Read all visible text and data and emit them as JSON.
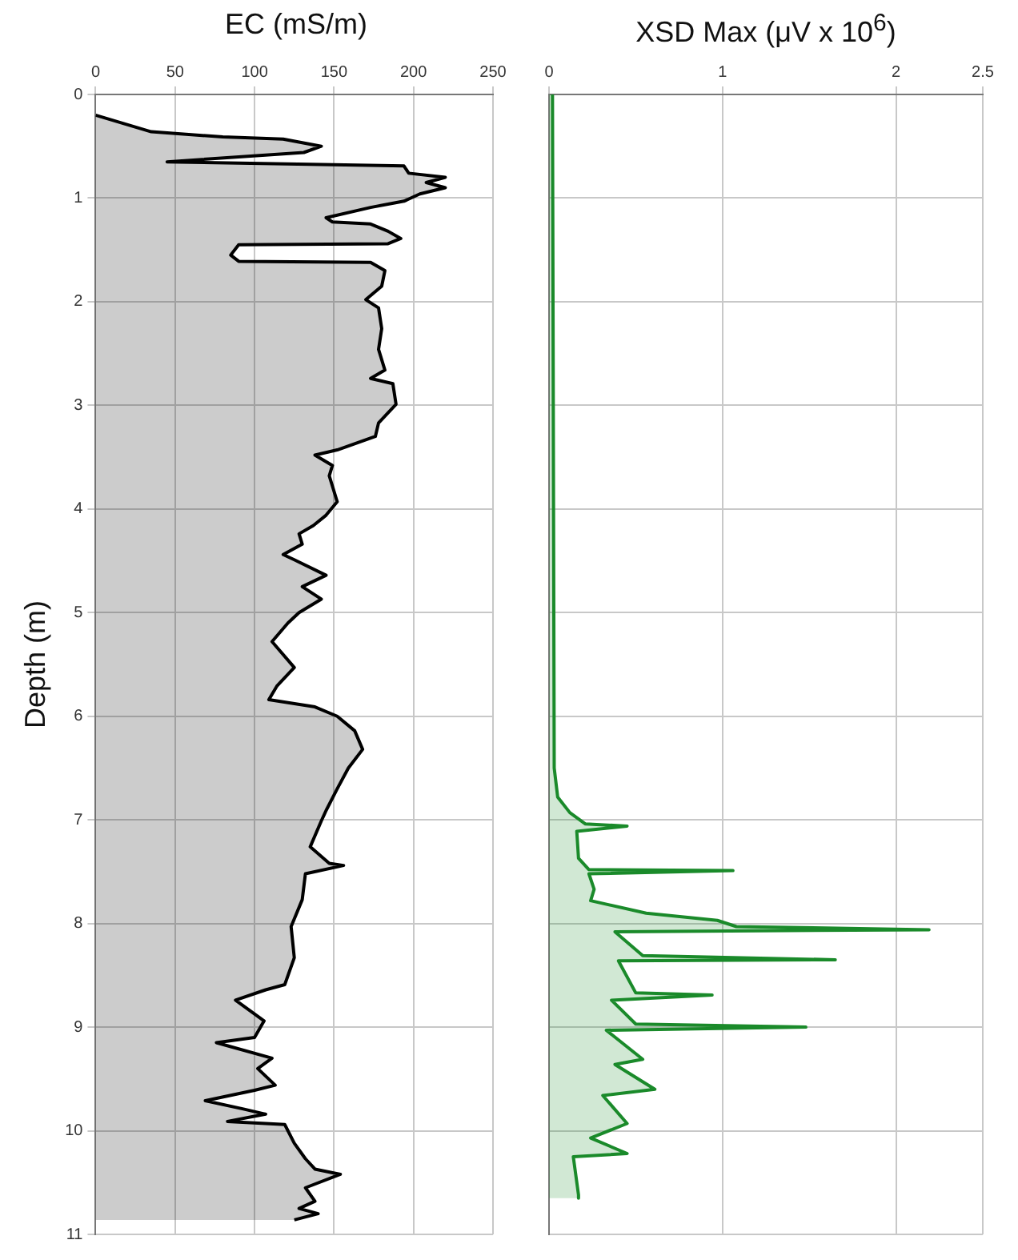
{
  "chart_data": [
    {
      "type": "area",
      "orientation": "horizontal",
      "title": "EC (mS/m)",
      "ylabel": "Depth (m)",
      "xlim": [
        0,
        250
      ],
      "xticks": [
        0,
        50,
        100,
        150,
        200,
        250
      ],
      "ylim": [
        11,
        0
      ],
      "yticks": [
        0,
        1,
        2,
        3,
        4,
        5,
        6,
        7,
        8,
        9,
        10,
        11
      ],
      "grid": true,
      "series": [
        {
          "color": "#000000",
          "x": [
            0.2,
            0.36,
            0.41,
            0.43,
            0.5,
            0.56,
            0.65,
            0.69,
            0.76,
            0.8,
            0.85,
            0.9,
            0.96,
            1.03,
            1.09,
            1.19,
            1.23,
            1.25,
            1.32,
            1.39,
            1.44,
            1.45,
            1.55,
            1.61,
            1.62,
            1.7,
            1.85,
            1.98,
            2.06,
            2.26,
            2.46,
            2.66,
            2.74,
            2.79,
            2.99,
            3.17,
            3.3,
            3.43,
            3.48,
            3.58,
            3.68,
            3.93,
            4.06,
            4.16,
            4.24,
            4.34,
            4.44,
            4.49,
            4.64,
            4.75,
            4.87,
            5.0,
            5.1,
            5.28,
            5.53,
            5.71,
            5.84,
            5.91,
            6.0,
            6.14,
            6.32,
            6.5,
            6.7,
            6.91,
            7.01,
            7.26,
            7.42,
            7.44,
            7.52,
            7.77,
            8.03,
            8.33,
            8.59,
            8.64,
            8.74,
            8.94,
            9.1,
            9.15,
            9.3,
            9.4,
            9.56,
            9.61,
            9.71,
            9.79,
            9.84,
            9.91,
            9.94,
            10.12,
            10.27,
            10.37,
            10.42,
            10.55,
            10.68,
            10.75,
            10.8,
            10.86
          ],
          "values": [
            0,
            35,
            80,
            118,
            142,
            131,
            45,
            194,
            197,
            220,
            208,
            220,
            204,
            194,
            173,
            145,
            149,
            173,
            184,
            192,
            184,
            90,
            85,
            90,
            173,
            182,
            180,
            170,
            178,
            180,
            178,
            182,
            173,
            187,
            189,
            178,
            176,
            152,
            138,
            149,
            147,
            152,
            145,
            137,
            128,
            130,
            118,
            125,
            145,
            130,
            142,
            128,
            121,
            111,
            125,
            114,
            109,
            138,
            152,
            163,
            168,
            159,
            152,
            145,
            142,
            135,
            147,
            156,
            132,
            130,
            123,
            125,
            119,
            107,
            88,
            106,
            100,
            76,
            111,
            102,
            113,
            100,
            69,
            93,
            107,
            83,
            119,
            125,
            132,
            138,
            154,
            132,
            138,
            128,
            140,
            125
          ]
        }
      ]
    },
    {
      "type": "area",
      "orientation": "horizontal",
      "title": "XSD Max (μV x 10$^{6}$)",
      "xlim": [
        0,
        2.5
      ],
      "xticks": [
        0,
        1,
        2,
        2.5
      ],
      "ylim": [
        11,
        0
      ],
      "yticks": [
        0,
        1,
        2,
        3,
        4,
        5,
        6,
        7,
        8,
        9,
        10,
        11
      ],
      "grid": true,
      "tick_labels": "x",
      "series": [
        {
          "color": "#1a8a2a",
          "x": [
            0,
            6.5,
            6.78,
            6.93,
            7.04,
            7.06,
            7.11,
            7.37,
            7.48,
            7.49,
            7.52,
            7.67,
            7.78,
            7.9,
            7.97,
            8.03,
            8.06,
            8.08,
            8.31,
            8.35,
            8.36,
            8.67,
            8.69,
            8.74,
            8.97,
            9.0,
            9.03,
            9.31,
            9.36,
            9.6,
            9.66,
            9.93,
            10.07,
            10.22,
            10.25,
            10.62,
            10.65
          ],
          "values": [
            0.02,
            0.03,
            0.05,
            0.12,
            0.21,
            0.45,
            0.16,
            0.17,
            0.23,
            1.06,
            0.23,
            0.26,
            0.24,
            0.56,
            0.97,
            1.08,
            2.19,
            0.38,
            0.54,
            1.65,
            0.4,
            0.5,
            0.94,
            0.36,
            0.5,
            1.48,
            0.33,
            0.54,
            0.38,
            0.61,
            0.31,
            0.45,
            0.24,
            0.45,
            0.14,
            0.17,
            0.17
          ]
        }
      ]
    }
  ]
}
